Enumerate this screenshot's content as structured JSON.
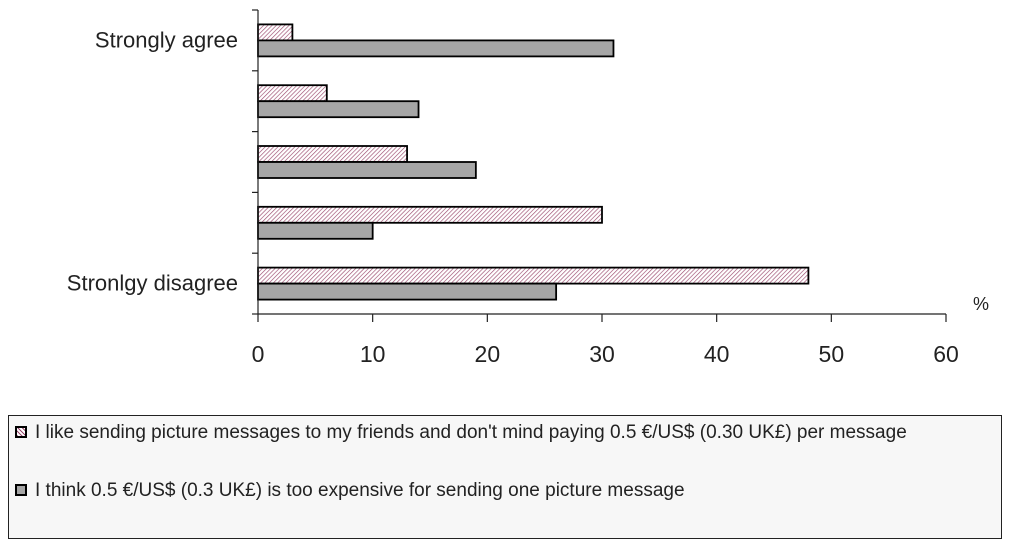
{
  "chart_data": {
    "type": "bar",
    "orientation": "horizontal",
    "categories": [
      "Strongly agree",
      "",
      "",
      "",
      "Stronlgy disagree"
    ],
    "series": [
      {
        "name": "I like sending picture messages to my friends and don't mind paying 0.5 €/US$ (0.30 UK£) per message",
        "values": [
          3,
          6,
          13,
          30,
          48
        ],
        "color": "#9b4a6e",
        "pattern": "hatched"
      },
      {
        "name": "I think 0.5 €/US$ (0.3 UK£) is too expensive for sending one picture message",
        "values": [
          31,
          14,
          19,
          10,
          26
        ],
        "color": "#a6a6a6",
        "pattern": "solid"
      }
    ],
    "xlim": [
      0,
      60
    ],
    "xticks": [
      "0",
      "10",
      "20",
      "30",
      "40",
      "50",
      "60"
    ],
    "xlabel": "%",
    "grid": false,
    "legend_position": "bottom"
  }
}
